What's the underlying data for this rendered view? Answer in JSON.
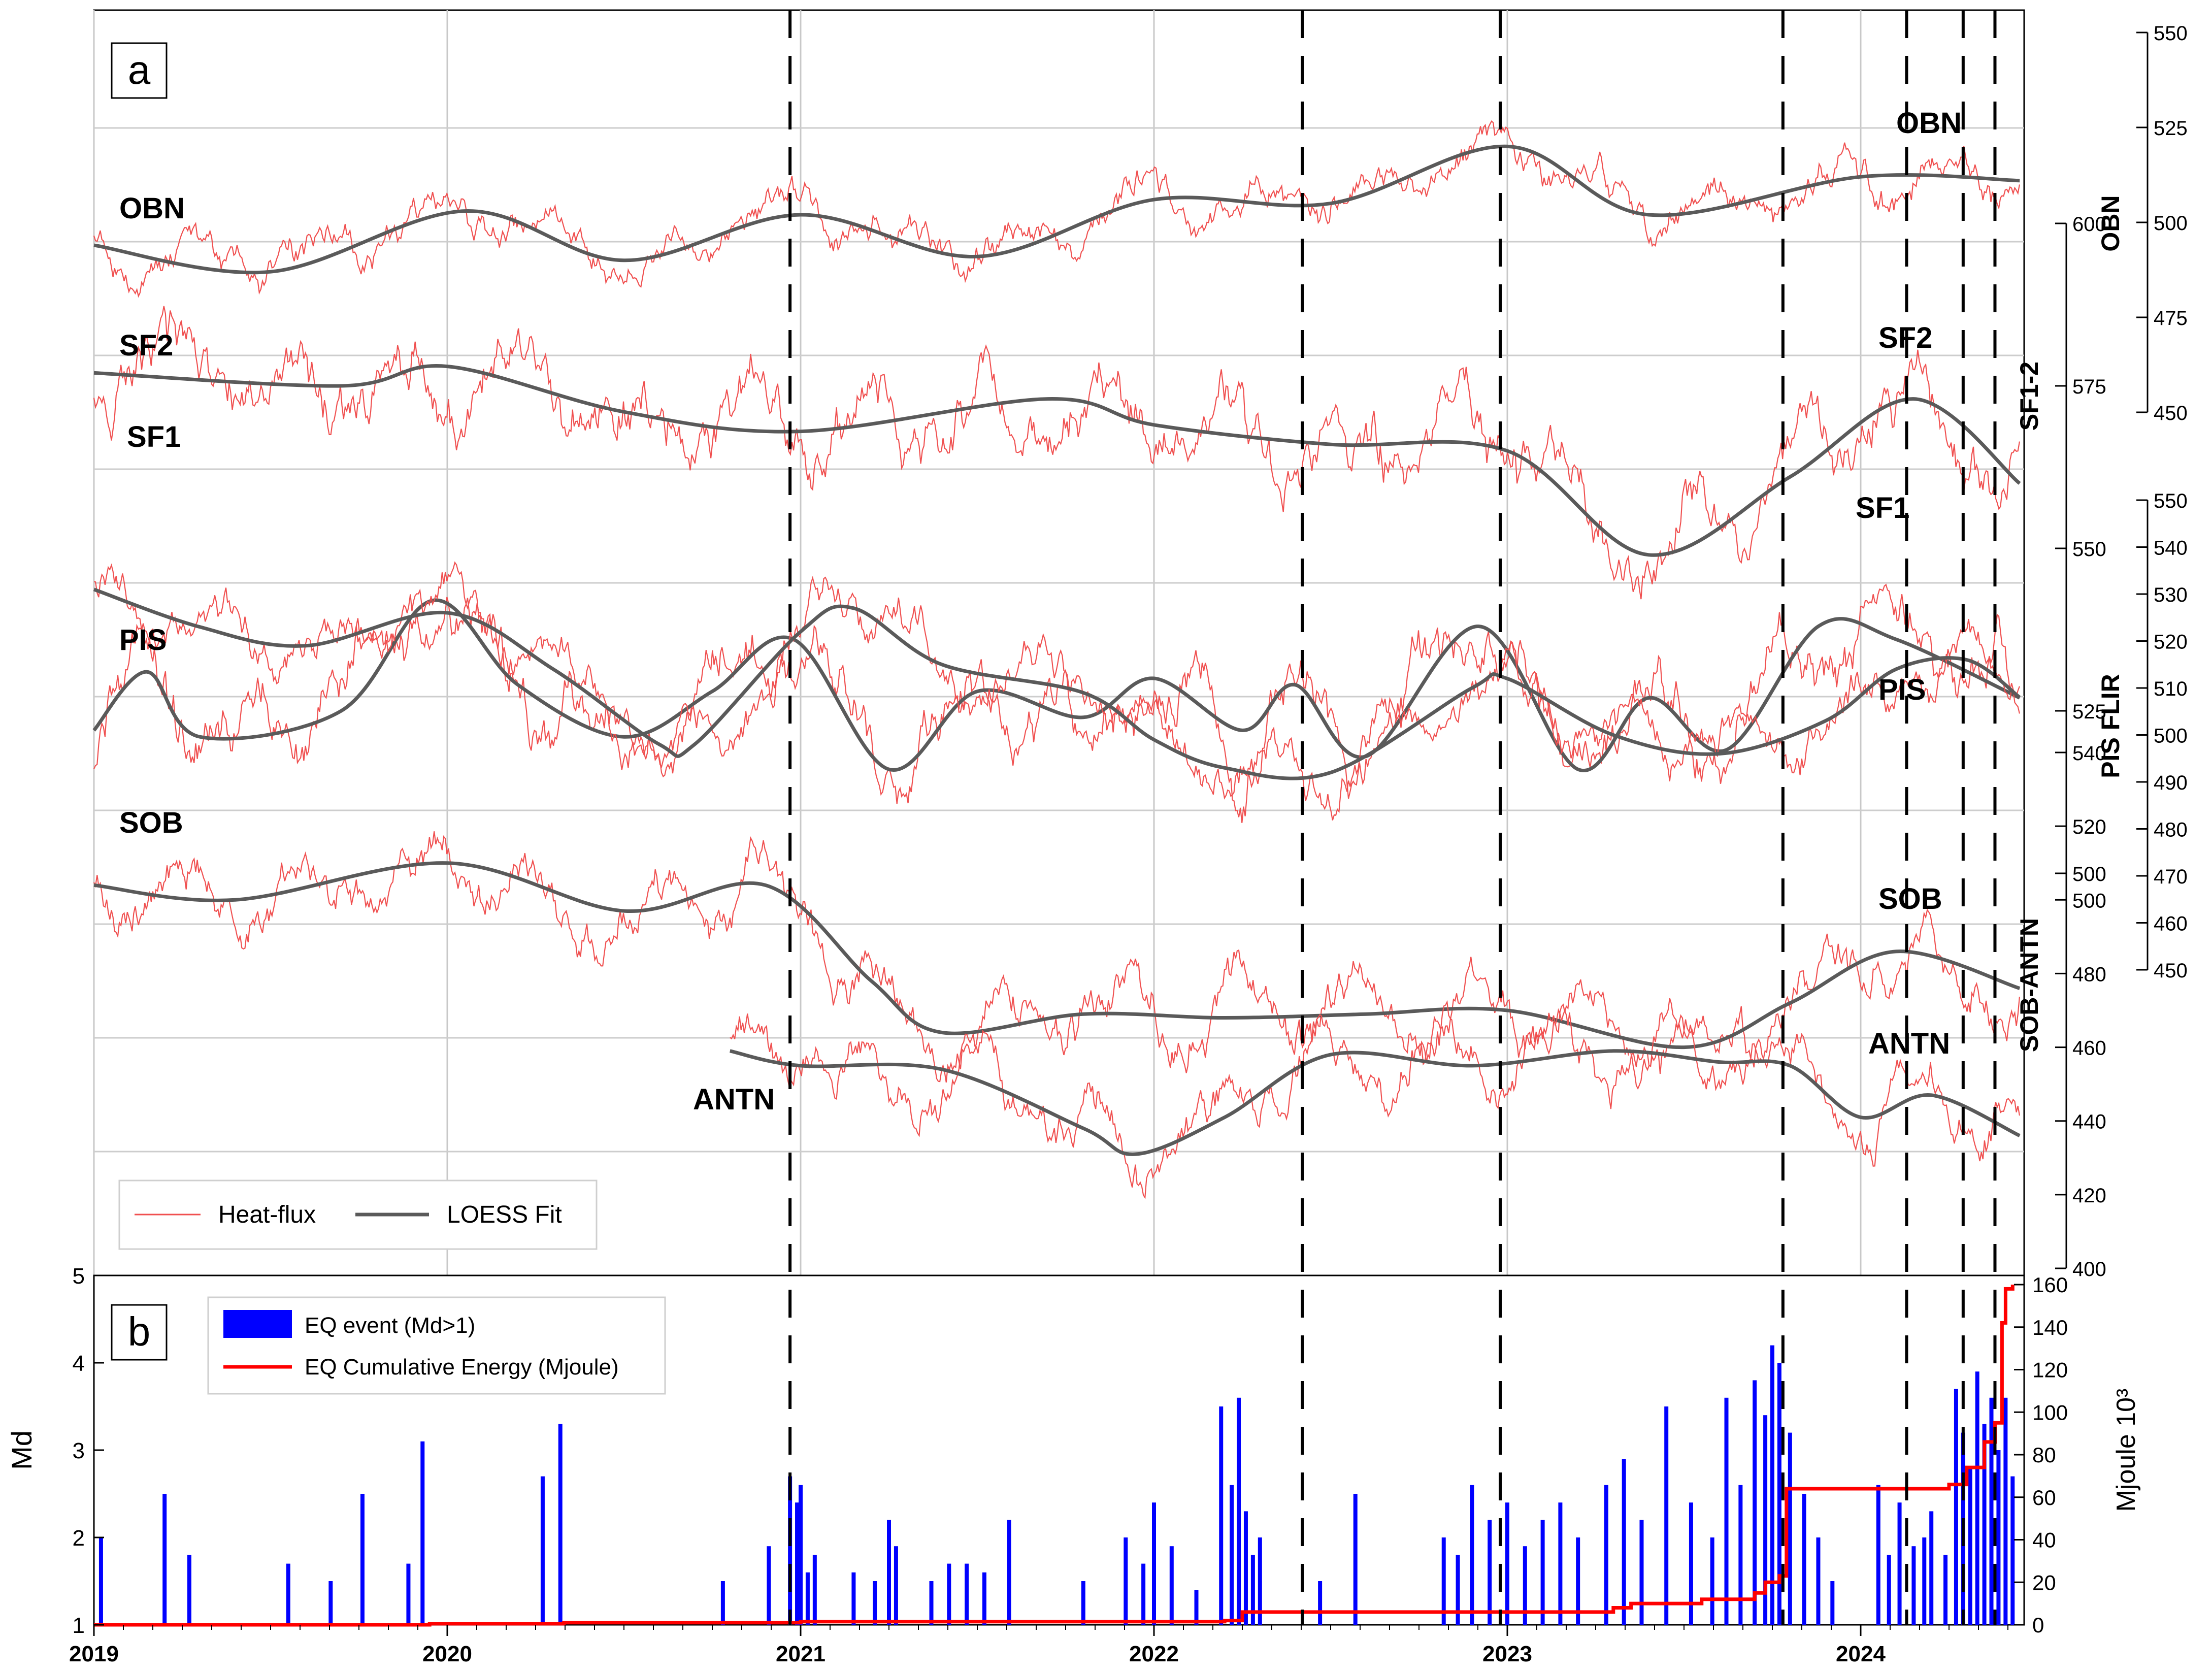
{
  "chart_data": [
    {
      "type": "line",
      "panel_label": "a",
      "x_ticks": [
        "2019",
        "2020",
        "2021",
        "2022",
        "2023",
        "2024"
      ],
      "x_range": [
        2019.0,
        2024.5
      ],
      "legend": {
        "placement": "bottom-left",
        "entries": [
          "Heat-flux",
          "LOESS Fit"
        ]
      },
      "colors": {
        "heat_flux": "#f05050",
        "loess": "#5a5a5a"
      },
      "grid": true,
      "event_dates": [
        2020.97,
        2022.42,
        2022.98,
        2023.78,
        2024.13,
        2024.29,
        2024.38
      ],
      "series": [
        {
          "name": "OBN",
          "axis_label": "OBN",
          "axis_ticks": [
            450,
            475,
            500,
            525,
            550
          ],
          "ylim": [
            450,
            550
          ],
          "loess": [
            {
              "x": 2019.0,
              "y": 494
            },
            {
              "x": 2019.5,
              "y": 487
            },
            {
              "x": 2020.05,
              "y": 503
            },
            {
              "x": 2020.5,
              "y": 490
            },
            {
              "x": 2021.0,
              "y": 502
            },
            {
              "x": 2021.5,
              "y": 491
            },
            {
              "x": 2022.0,
              "y": 506
            },
            {
              "x": 2022.5,
              "y": 505
            },
            {
              "x": 2023.0,
              "y": 520
            },
            {
              "x": 2023.4,
              "y": 502
            },
            {
              "x": 2024.0,
              "y": 512
            },
            {
              "x": 2024.45,
              "y": 511
            }
          ]
        },
        {
          "name": "SF2",
          "axis_label": "SF1-2",
          "axis_ticks": [
            500,
            525,
            550,
            575,
            600
          ],
          "ylim": [
            500,
            600
          ],
          "loess": [
            {
              "x": 2019.0,
              "y": 577
            },
            {
              "x": 2019.7,
              "y": 575
            },
            {
              "x": 2020.0,
              "y": 578
            },
            {
              "x": 2020.5,
              "y": 571
            },
            {
              "x": 2021.0,
              "y": 568
            },
            {
              "x": 2021.7,
              "y": 573
            },
            {
              "x": 2022.0,
              "y": 569
            },
            {
              "x": 2022.5,
              "y": 566
            },
            {
              "x": 2023.0,
              "y": 565
            },
            {
              "x": 2023.4,
              "y": 549
            },
            {
              "x": 2023.8,
              "y": 561
            },
            {
              "x": 2024.15,
              "y": 573
            },
            {
              "x": 2024.45,
              "y": 560
            }
          ]
        },
        {
          "name": "SF1",
          "axis_label": "SF1-2",
          "axis_ticks": [
            500,
            525,
            550,
            575,
            600
          ],
          "ylim": [
            500,
            600
          ],
          "loess": [
            {
              "x": 2019.0,
              "y": 522
            },
            {
              "x": 2019.15,
              "y": 531
            },
            {
              "x": 2019.3,
              "y": 521
            },
            {
              "x": 2019.7,
              "y": 525
            },
            {
              "x": 2019.96,
              "y": 542
            },
            {
              "x": 2020.2,
              "y": 529
            },
            {
              "x": 2020.5,
              "y": 521
            },
            {
              "x": 2020.75,
              "y": 528
            },
            {
              "x": 2020.98,
              "y": 536
            },
            {
              "x": 2021.25,
              "y": 516
            },
            {
              "x": 2021.5,
              "y": 528
            },
            {
              "x": 2021.8,
              "y": 524
            },
            {
              "x": 2022.0,
              "y": 530
            },
            {
              "x": 2022.25,
              "y": 522
            },
            {
              "x": 2022.4,
              "y": 529
            },
            {
              "x": 2022.6,
              "y": 518
            },
            {
              "x": 2022.92,
              "y": 538
            },
            {
              "x": 2023.2,
              "y": 516
            },
            {
              "x": 2023.4,
              "y": 527
            },
            {
              "x": 2023.62,
              "y": 519
            },
            {
              "x": 2023.88,
              "y": 538
            },
            {
              "x": 2024.1,
              "y": 536
            },
            {
              "x": 2024.45,
              "y": 527
            }
          ]
        },
        {
          "name": "PIS",
          "axis_label": "PIS FLIR",
          "axis_ticks": [
            450,
            460,
            470,
            480,
            490,
            500,
            510,
            520,
            530,
            540,
            550
          ],
          "ylim": [
            450,
            550
          ],
          "loess": [
            {
              "x": 2019.0,
              "y": 531
            },
            {
              "x": 2019.3,
              "y": 523
            },
            {
              "x": 2019.6,
              "y": 519
            },
            {
              "x": 2020.0,
              "y": 526
            },
            {
              "x": 2020.3,
              "y": 514
            },
            {
              "x": 2020.6,
              "y": 498
            },
            {
              "x": 2020.7,
              "y": 498
            },
            {
              "x": 2021.0,
              "y": 522
            },
            {
              "x": 2021.15,
              "y": 527
            },
            {
              "x": 2021.4,
              "y": 515
            },
            {
              "x": 2021.8,
              "y": 509
            },
            {
              "x": 2022.0,
              "y": 499
            },
            {
              "x": 2022.2,
              "y": 493
            },
            {
              "x": 2022.5,
              "y": 492
            },
            {
              "x": 2022.9,
              "y": 510
            },
            {
              "x": 2023.0,
              "y": 512
            },
            {
              "x": 2023.3,
              "y": 500
            },
            {
              "x": 2023.6,
              "y": 496
            },
            {
              "x": 2023.9,
              "y": 503
            },
            {
              "x": 2024.1,
              "y": 514
            },
            {
              "x": 2024.3,
              "y": 516
            },
            {
              "x": 2024.45,
              "y": 508
            }
          ]
        },
        {
          "name": "SOB",
          "axis_label": "SOB-ANTN",
          "axis_ticks": [
            400,
            420,
            440,
            460,
            480,
            500,
            520,
            540
          ],
          "ylim": [
            400,
            540
          ],
          "loess": [
            {
              "x": 2019.0,
              "y": 504
            },
            {
              "x": 2019.4,
              "y": 500
            },
            {
              "x": 2020.0,
              "y": 510
            },
            {
              "x": 2020.5,
              "y": 497
            },
            {
              "x": 2020.9,
              "y": 504
            },
            {
              "x": 2021.2,
              "y": 478
            },
            {
              "x": 2021.4,
              "y": 464
            },
            {
              "x": 2021.8,
              "y": 469
            },
            {
              "x": 2022.2,
              "y": 468
            },
            {
              "x": 2022.6,
              "y": 469
            },
            {
              "x": 2023.0,
              "y": 470
            },
            {
              "x": 2023.5,
              "y": 460
            },
            {
              "x": 2023.8,
              "y": 472
            },
            {
              "x": 2024.1,
              "y": 486
            },
            {
              "x": 2024.45,
              "y": 476
            }
          ]
        },
        {
          "name": "ANTN",
          "axis_label": "SOB-ANTN",
          "axis_ticks": [
            400,
            420,
            440,
            460,
            480,
            500,
            520,
            540
          ],
          "ylim": [
            400,
            540
          ],
          "loess": [
            {
              "x": 2020.8,
              "y": 459
            },
            {
              "x": 2021.0,
              "y": 455
            },
            {
              "x": 2021.4,
              "y": 454
            },
            {
              "x": 2021.8,
              "y": 438
            },
            {
              "x": 2021.95,
              "y": 431
            },
            {
              "x": 2022.2,
              "y": 441
            },
            {
              "x": 2022.5,
              "y": 458
            },
            {
              "x": 2022.9,
              "y": 455
            },
            {
              "x": 2023.3,
              "y": 459
            },
            {
              "x": 2023.6,
              "y": 456
            },
            {
              "x": 2023.8,
              "y": 455
            },
            {
              "x": 2024.0,
              "y": 441
            },
            {
              "x": 2024.2,
              "y": 447
            },
            {
              "x": 2024.45,
              "y": 436
            }
          ]
        }
      ]
    },
    {
      "type": "bar",
      "panel_label": "b",
      "x_ticks": [
        "2019",
        "2020",
        "2021",
        "2022",
        "2023",
        "2024"
      ],
      "ylabel": "Md",
      "ylim": [
        1,
        5
      ],
      "y_ticks": [
        1,
        2,
        3,
        4,
        5
      ],
      "y2label": "Mjoule  10³",
      "y2lim": [
        0,
        160
      ],
      "y2_ticks": [
        0,
        20,
        40,
        60,
        80,
        100,
        120,
        140,
        160
      ],
      "legend": {
        "placement": "top-left",
        "entries": [
          "EQ event (Md>1)",
          "EQ Cumulative Energy (Mjoule)"
        ]
      },
      "colors": {
        "events": "#0000ff",
        "energy": "#ff0000"
      },
      "events": [
        {
          "x": 2019.02,
          "md": 2.0
        },
        {
          "x": 2019.2,
          "md": 2.5
        },
        {
          "x": 2019.27,
          "md": 1.8
        },
        {
          "x": 2019.55,
          "md": 1.7
        },
        {
          "x": 2019.67,
          "md": 1.5
        },
        {
          "x": 2019.76,
          "md": 2.5
        },
        {
          "x": 2019.89,
          "md": 1.7
        },
        {
          "x": 2019.93,
          "md": 3.1
        },
        {
          "x": 2020.27,
          "md": 2.7
        },
        {
          "x": 2020.32,
          "md": 3.3
        },
        {
          "x": 2020.78,
          "md": 1.5
        },
        {
          "x": 2020.91,
          "md": 1.9
        },
        {
          "x": 2020.97,
          "md": 2.7
        },
        {
          "x": 2020.99,
          "md": 2.4
        },
        {
          "x": 2021.0,
          "md": 2.6
        },
        {
          "x": 2021.02,
          "md": 1.6
        },
        {
          "x": 2021.04,
          "md": 1.8
        },
        {
          "x": 2021.15,
          "md": 1.6
        },
        {
          "x": 2021.21,
          "md": 1.5
        },
        {
          "x": 2021.25,
          "md": 2.2
        },
        {
          "x": 2021.27,
          "md": 1.9
        },
        {
          "x": 2021.37,
          "md": 1.5
        },
        {
          "x": 2021.42,
          "md": 1.7
        },
        {
          "x": 2021.47,
          "md": 1.7
        },
        {
          "x": 2021.52,
          "md": 1.6
        },
        {
          "x": 2021.59,
          "md": 2.2
        },
        {
          "x": 2021.8,
          "md": 1.5
        },
        {
          "x": 2021.92,
          "md": 2.0
        },
        {
          "x": 2021.97,
          "md": 1.7
        },
        {
          "x": 2022.0,
          "md": 2.4
        },
        {
          "x": 2022.05,
          "md": 1.9
        },
        {
          "x": 2022.12,
          "md": 1.4
        },
        {
          "x": 2022.19,
          "md": 3.5
        },
        {
          "x": 2022.22,
          "md": 2.6
        },
        {
          "x": 2022.24,
          "md": 3.6
        },
        {
          "x": 2022.26,
          "md": 2.3
        },
        {
          "x": 2022.28,
          "md": 1.8
        },
        {
          "x": 2022.3,
          "md": 2.0
        },
        {
          "x": 2022.47,
          "md": 1.5
        },
        {
          "x": 2022.57,
          "md": 2.5
        },
        {
          "x": 2022.82,
          "md": 2.0
        },
        {
          "x": 2022.86,
          "md": 1.8
        },
        {
          "x": 2022.9,
          "md": 2.6
        },
        {
          "x": 2022.95,
          "md": 2.2
        },
        {
          "x": 2023.0,
          "md": 2.4
        },
        {
          "x": 2023.05,
          "md": 1.9
        },
        {
          "x": 2023.1,
          "md": 2.2
        },
        {
          "x": 2023.15,
          "md": 2.4
        },
        {
          "x": 2023.2,
          "md": 2.0
        },
        {
          "x": 2023.28,
          "md": 2.6
        },
        {
          "x": 2023.33,
          "md": 2.9
        },
        {
          "x": 2023.38,
          "md": 2.2
        },
        {
          "x": 2023.45,
          "md": 3.5
        },
        {
          "x": 2023.52,
          "md": 2.4
        },
        {
          "x": 2023.58,
          "md": 2.0
        },
        {
          "x": 2023.62,
          "md": 3.6
        },
        {
          "x": 2023.66,
          "md": 2.6
        },
        {
          "x": 2023.7,
          "md": 3.8
        },
        {
          "x": 2023.73,
          "md": 3.4
        },
        {
          "x": 2023.75,
          "md": 4.2
        },
        {
          "x": 2023.77,
          "md": 4.0
        },
        {
          "x": 2023.8,
          "md": 3.2
        },
        {
          "x": 2023.84,
          "md": 2.5
        },
        {
          "x": 2023.88,
          "md": 2.0
        },
        {
          "x": 2023.92,
          "md": 1.5
        },
        {
          "x": 2024.05,
          "md": 2.6
        },
        {
          "x": 2024.08,
          "md": 1.8
        },
        {
          "x": 2024.11,
          "md": 2.4
        },
        {
          "x": 2024.15,
          "md": 1.9
        },
        {
          "x": 2024.18,
          "md": 2.0
        },
        {
          "x": 2024.2,
          "md": 2.3
        },
        {
          "x": 2024.24,
          "md": 1.8
        },
        {
          "x": 2024.27,
          "md": 3.7
        },
        {
          "x": 2024.29,
          "md": 3.2
        },
        {
          "x": 2024.31,
          "md": 2.8
        },
        {
          "x": 2024.33,
          "md": 3.9
        },
        {
          "x": 2024.35,
          "md": 3.3
        },
        {
          "x": 2024.37,
          "md": 3.6
        },
        {
          "x": 2024.39,
          "md": 3.0
        },
        {
          "x": 2024.41,
          "md": 3.6
        },
        {
          "x": 2024.43,
          "md": 2.7
        }
      ],
      "energy": [
        {
          "x": 2019.0,
          "y": 0
        },
        {
          "x": 2019.95,
          "y": 0.5
        },
        {
          "x": 2020.33,
          "y": 1
        },
        {
          "x": 2021.0,
          "y": 1.5
        },
        {
          "x": 2022.2,
          "y": 2
        },
        {
          "x": 2022.25,
          "y": 6
        },
        {
          "x": 2023.3,
          "y": 8
        },
        {
          "x": 2023.35,
          "y": 10
        },
        {
          "x": 2023.55,
          "y": 12
        },
        {
          "x": 2023.7,
          "y": 15
        },
        {
          "x": 2023.73,
          "y": 20
        },
        {
          "x": 2023.77,
          "y": 23
        },
        {
          "x": 2023.79,
          "y": 64
        },
        {
          "x": 2024.25,
          "y": 66
        },
        {
          "x": 2024.3,
          "y": 74
        },
        {
          "x": 2024.35,
          "y": 86
        },
        {
          "x": 2024.38,
          "y": 95
        },
        {
          "x": 2024.4,
          "y": 142
        },
        {
          "x": 2024.41,
          "y": 158
        },
        {
          "x": 2024.43,
          "y": 160
        }
      ]
    }
  ]
}
